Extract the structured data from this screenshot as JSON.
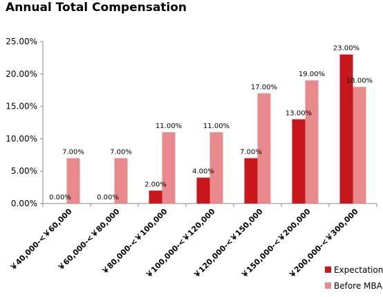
{
  "chart_data": {
    "type": "bar",
    "title": "Annual Total Compensation",
    "categories": [
      "￥40,000-<￥60,000",
      "￥60,000-<￥80,000",
      "￥80,000-<￥100,000",
      "￥100,000-<￥120,000",
      "￥120,000-<￥150,000",
      "￥150,000-<￥200,000",
      "￥200,000-<￥300,000"
    ],
    "series": [
      {
        "name": "Expectation",
        "color": "#c8161d",
        "values": [
          0.0,
          0.0,
          2.0,
          4.0,
          7.0,
          13.0,
          23.0
        ],
        "labels": [
          "0.00%",
          "0.00%",
          "2.00%",
          "4.00%",
          "7.00%",
          "13.00%",
          "23.00%"
        ]
      },
      {
        "name": "Before MBA",
        "color": "#e8898b",
        "values": [
          7.0,
          7.0,
          11.0,
          11.0,
          17.0,
          19.0,
          18.0
        ],
        "labels": [
          "7.00%",
          "7.00%",
          "11.00%",
          "11.00%",
          "17.00%",
          "19.00%",
          "18.00%"
        ]
      }
    ],
    "y_ticks": [
      0,
      5,
      10,
      15,
      20,
      25
    ],
    "y_tick_labels": [
      "0.00%",
      "5.00%",
      "10.00%",
      "15.00%",
      "20.00%",
      "25.00%"
    ],
    "ylim": [
      0,
      25
    ],
    "grid": false,
    "legend_position": "bottom-right"
  }
}
